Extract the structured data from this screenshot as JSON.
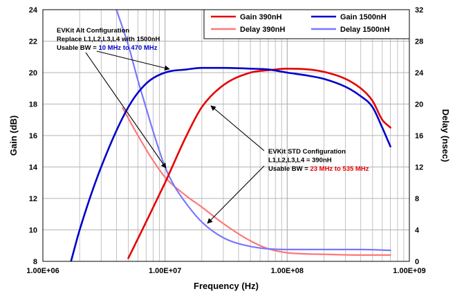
{
  "chart_data": {
    "type": "line",
    "xlabel": "Frequency (Hz)",
    "ylabel": "Gain (dB)",
    "y2label": "Delay (nsec)",
    "xscale": "log",
    "xlim": [
      1000000,
      1000000000
    ],
    "ylim": [
      8,
      24
    ],
    "y2lim": [
      0,
      32
    ],
    "grid": true,
    "legend_position": "top-right",
    "x_ticks": [
      "1.00E+06",
      "1.00E+07",
      "1.00E+08",
      "1.00E+09"
    ],
    "y_ticks": [
      "8",
      "10",
      "12",
      "14",
      "16",
      "18",
      "20",
      "22",
      "24"
    ],
    "y2_ticks": [
      "0",
      "4",
      "8",
      "12",
      "16",
      "20",
      "24",
      "28",
      "32"
    ],
    "series": [
      {
        "name": "Gain 390nH",
        "axis": "left",
        "color": "#e60000",
        "x": [
          5000000,
          7000000,
          10000000,
          15000000,
          20000000,
          30000000,
          50000000,
          70000000,
          100000000,
          150000000,
          200000000,
          300000000,
          400000000,
          500000000,
          600000000,
          700000000
        ],
        "y": [
          8.2,
          10.5,
          13.0,
          16.0,
          17.8,
          19.2,
          20.0,
          20.15,
          20.25,
          20.2,
          20.05,
          19.6,
          19.0,
          18.2,
          17.0,
          16.5
        ]
      },
      {
        "name": "Gain 1500nH",
        "axis": "left",
        "color": "#0000cc",
        "x": [
          1700000,
          2000000,
          3000000,
          5000000,
          7000000,
          10000000,
          15000000,
          20000000,
          30000000,
          50000000,
          70000000,
          100000000,
          150000000,
          200000000,
          300000000,
          400000000,
          500000000,
          600000000,
          700000000
        ],
        "y": [
          8.0,
          10.0,
          14.0,
          17.8,
          19.3,
          20.0,
          20.2,
          20.3,
          20.3,
          20.25,
          20.2,
          20.0,
          19.8,
          19.6,
          19.1,
          18.5,
          17.8,
          16.5,
          15.3
        ]
      },
      {
        "name": "Delay 390nH",
        "axis": "right",
        "color": "#ff7777",
        "x": [
          4500000,
          6000000,
          8000000,
          10000000,
          15000000,
          20000000,
          30000000,
          50000000,
          70000000,
          100000000,
          200000000,
          400000000,
          700000000
        ],
        "y": [
          19.5,
          16.0,
          12.8,
          10.7,
          8.3,
          6.9,
          4.8,
          2.6,
          1.6,
          1.1,
          0.9,
          0.8,
          0.8
        ]
      },
      {
        "name": "Delay 1500nH",
        "axis": "right",
        "color": "#7777ff",
        "x": [
          4000000,
          5000000,
          6000000,
          7000000,
          8000000,
          10000000,
          12000000,
          15000000,
          20000000,
          30000000,
          50000000,
          100000000,
          200000000,
          400000000,
          700000000
        ],
        "y": [
          32,
          27.5,
          23.0,
          19.5,
          16.5,
          12.0,
          9.5,
          7.3,
          5.0,
          3.0,
          1.9,
          1.5,
          1.5,
          1.5,
          1.4
        ]
      }
    ],
    "annotations": [
      {
        "lines": [
          "EVKit Alt Configuration",
          "Replace L1,L2,L3,L4 with 1500nH"
        ],
        "bw_prefix": "Usable BW = ",
        "bw_value": "10 MHz to 470 MHz",
        "bw_color": "#0000cc"
      },
      {
        "lines": [
          "EVKit STD Configuration",
          "L1,L2,L3,L4 = 390nH"
        ],
        "bw_prefix": "Usable BW = ",
        "bw_value": "23 MHz to 535 MHz",
        "bw_color": "#e60000"
      }
    ]
  }
}
